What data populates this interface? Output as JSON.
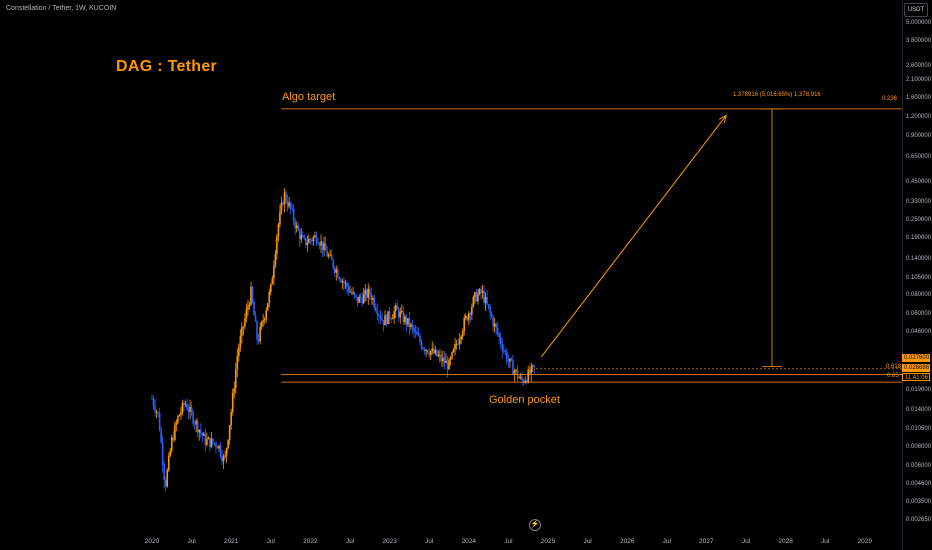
{
  "header": {
    "symbol": "Constellation / Tether, 1W, KUCOIN",
    "title": "DAG : Tether",
    "currency": "USDT"
  },
  "annotations": {
    "algo_target": "Algo target",
    "golden_pocket": "Golden pocket",
    "measure": "1.378916 (5,016.65%) 1,378,916",
    "fib_0236": "0.236",
    "fib_0618": "0.618",
    "fib_065": "0.65"
  },
  "price_tags": {
    "top": "0.027600",
    "current": "0.026686",
    "countdown": "11:41:06"
  },
  "colors": {
    "background": "#000000",
    "accent": "#ff9800",
    "candle_up": "#ff9800",
    "candle_down": "#2962ff"
  },
  "chart_data": {
    "type": "candlestick",
    "title": "DAG : Tether",
    "scale": "log",
    "y_ticks": [
      "5.000000",
      "3.800000",
      "2.600000",
      "2.100000",
      "1.600000",
      "1.200000",
      "0.900000",
      "0.650000",
      "0.450000",
      "0.330000",
      "0.250000",
      "0.190000",
      "0.140000",
      "0.105000",
      "0.080000",
      "0.060000",
      "0.046000",
      "0.019000",
      "0.014000",
      "0.010500",
      "0.008000",
      "0.006000",
      "0.004600",
      "0.003500",
      "0.002650"
    ],
    "x_ticks": [
      "2020",
      "Jul",
      "2021",
      "Jul",
      "2022",
      "Jul",
      "2023",
      "Jul",
      "2024",
      "Jul",
      "2025",
      "Jul",
      "2026",
      "Jul",
      "2027",
      "Jul",
      "2028",
      "Jul",
      "2029"
    ],
    "x_range": [
      "2019-10",
      "2029-06"
    ],
    "price_path": [
      [
        "2020-01",
        0.017
      ],
      [
        "2020-02",
        0.013
      ],
      [
        "2020-03",
        0.0045
      ],
      [
        "2020-04",
        0.009
      ],
      [
        "2020-05",
        0.013
      ],
      [
        "2020-06",
        0.016
      ],
      [
        "2020-08",
        0.011
      ],
      [
        "2020-09",
        0.009
      ],
      [
        "2020-11",
        0.0085
      ],
      [
        "2020-12",
        0.0065
      ],
      [
        "2021-01",
        0.014
      ],
      [
        "2021-02",
        0.035
      ],
      [
        "2021-03",
        0.055
      ],
      [
        "2021-04",
        0.085
      ],
      [
        "2021-05",
        0.04
      ],
      [
        "2021-06",
        0.06
      ],
      [
        "2021-07",
        0.09
      ],
      [
        "2021-08",
        0.22
      ],
      [
        "2021-09",
        0.38
      ],
      [
        "2021-10",
        0.3
      ],
      [
        "2021-11",
        0.22
      ],
      [
        "2021-12",
        0.18
      ],
      [
        "2022-02",
        0.2
      ],
      [
        "2022-04",
        0.14
      ],
      [
        "2022-06",
        0.1
      ],
      [
        "2022-08",
        0.075
      ],
      [
        "2022-10",
        0.085
      ],
      [
        "2022-12",
        0.055
      ],
      [
        "2023-02",
        0.065
      ],
      [
        "2023-04",
        0.052
      ],
      [
        "2023-06",
        0.038
      ],
      [
        "2023-08",
        0.033
      ],
      [
        "2023-10",
        0.028
      ],
      [
        "2023-12",
        0.05
      ],
      [
        "2024-02",
        0.08
      ],
      [
        "2024-03",
        0.085
      ],
      [
        "2024-05",
        0.05
      ],
      [
        "2024-07",
        0.03
      ],
      [
        "2024-09",
        0.022
      ],
      [
        "2024-11",
        0.027
      ]
    ],
    "lines": {
      "fib_0236_price": 1.378916,
      "fib_0618_price": 0.0276,
      "fib_065_price": 0.0218,
      "current_price": 0.026686
    },
    "projection": {
      "from": [
        "2024-12",
        0.032
      ],
      "to": [
        "2027-04",
        1.25
      ]
    }
  }
}
